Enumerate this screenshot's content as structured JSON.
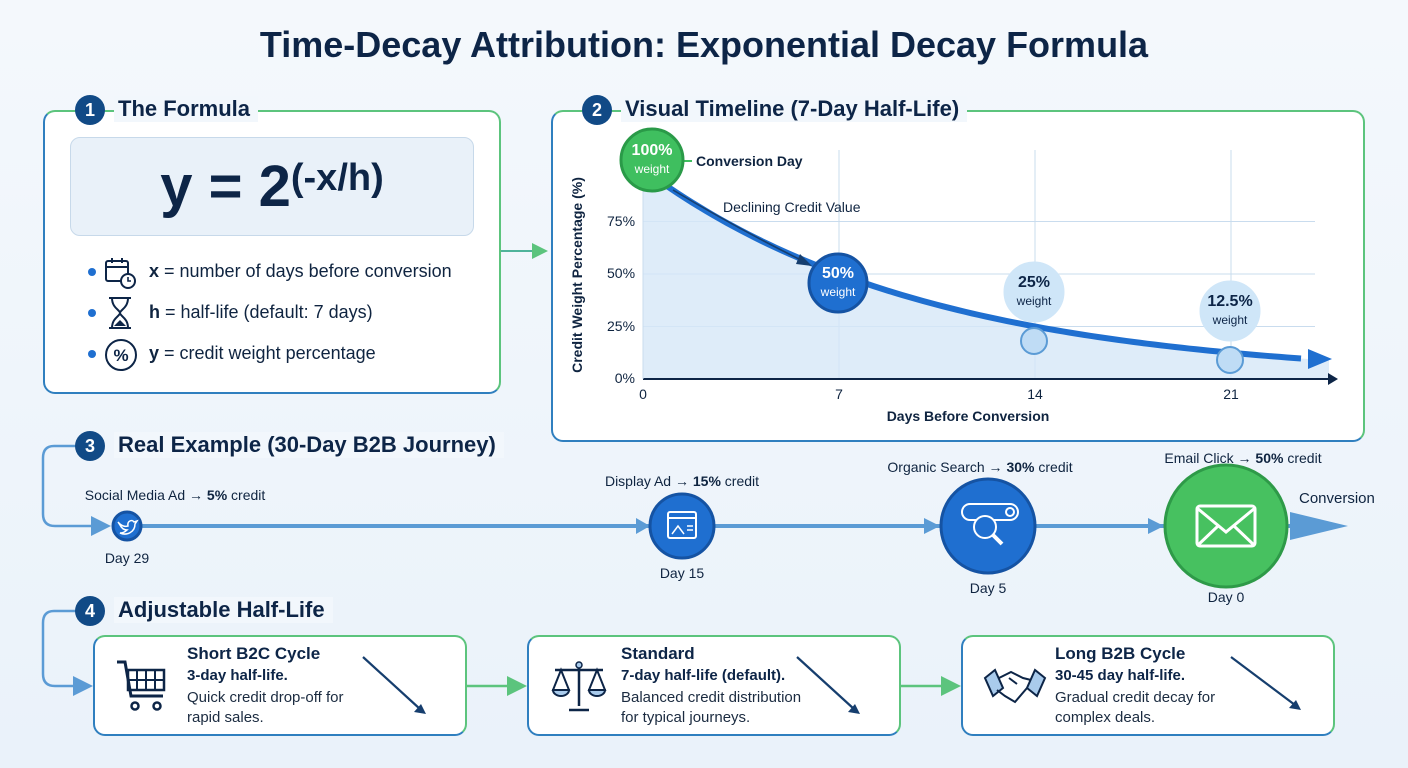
{
  "title": "Time-Decay Attribution: Exponential Decay Formula",
  "sections": {
    "formula": {
      "number": "1",
      "title": "The Formula",
      "formula_base": "y = 2",
      "formula_exponent": "(-x/h)",
      "bullets": [
        {
          "icon": "calendar-clock-icon",
          "var": "x",
          "text": " = number of days before conversion"
        },
        {
          "icon": "hourglass-icon",
          "var": "h",
          "text": " = half-life (default: 7 days)"
        },
        {
          "icon": "percent-icon",
          "var": "y",
          "text": " = credit weight percentage"
        }
      ]
    },
    "timeline": {
      "number": "2",
      "title": "Visual Timeline (7-Day Half-Life)",
      "conversion_day_label": "Conversion Day",
      "declining_label": "Declining Credit Value",
      "points": [
        {
          "value": "100%",
          "sub": "weight"
        },
        {
          "value": "50%",
          "sub": "weight"
        },
        {
          "value": "25%",
          "sub": "weight"
        },
        {
          "value": "12.5%",
          "sub": "weight"
        }
      ]
    },
    "example": {
      "number": "3",
      "title": "Real Example (30-Day B2B Journey)",
      "touchpoints": [
        {
          "channel": "Social Media Ad",
          "arrow": " → ",
          "credit": "5%",
          "suffix": " credit",
          "day": "Day 29",
          "icon": "twitter-bird-icon"
        },
        {
          "channel": "Display Ad",
          "arrow": " → ",
          "credit": "15%",
          "suffix": " credit",
          "day": "Day 15",
          "icon": "display-ad-icon"
        },
        {
          "channel": "Organic Search",
          "arrow": " → ",
          "credit": "30%",
          "suffix": " credit",
          "day": "Day 5",
          "icon": "search-icon"
        },
        {
          "channel": "Email Click",
          "arrow": " → ",
          "credit": "50%",
          "suffix": " credit",
          "day": "Day 0",
          "icon": "envelope-icon"
        }
      ],
      "end_label": "Conversion"
    },
    "adjustable": {
      "number": "4",
      "title": "Adjustable Half-Life",
      "cards": [
        {
          "title": "Short B2C Cycle",
          "subtitle": "3-day half-life.",
          "desc": "Quick credit drop-off for rapid sales.",
          "icon": "shopping-cart-icon"
        },
        {
          "title": "Standard",
          "subtitle": "7-day half-life (default).",
          "desc": "Balanced credit distribution for typical journeys.",
          "icon": "balance-scale-icon"
        },
        {
          "title": "Long B2B Cycle",
          "subtitle": "30-45 day half-life.",
          "desc": "Gradual credit decay for complex deals.",
          "icon": "handshake-icon"
        }
      ]
    }
  },
  "colors": {
    "navy": "#0d2547",
    "blue": "#1f6fd0",
    "green": "#3fbf5f",
    "light_blue": "#cfe6f8",
    "line_blue": "#5b9bd5"
  },
  "chart_data": {
    "type": "area",
    "function": "y = 100 * 2^(-x/7)",
    "xlabel": "Days Before Conversion",
    "ylabel": "Credit Weight Percentage (%)",
    "x_ticks": [
      "0",
      "7",
      "14",
      "21"
    ],
    "y_ticks": [
      "0%",
      "25%",
      "50%",
      "75%"
    ],
    "xlim": [
      0,
      24.5
    ],
    "ylim": [
      0,
      100
    ],
    "grid": true,
    "points": [
      {
        "x": 0,
        "y": 100
      },
      {
        "x": 7,
        "y": 50
      },
      {
        "x": 14,
        "y": 25
      },
      {
        "x": 21,
        "y": 12.5
      }
    ]
  }
}
